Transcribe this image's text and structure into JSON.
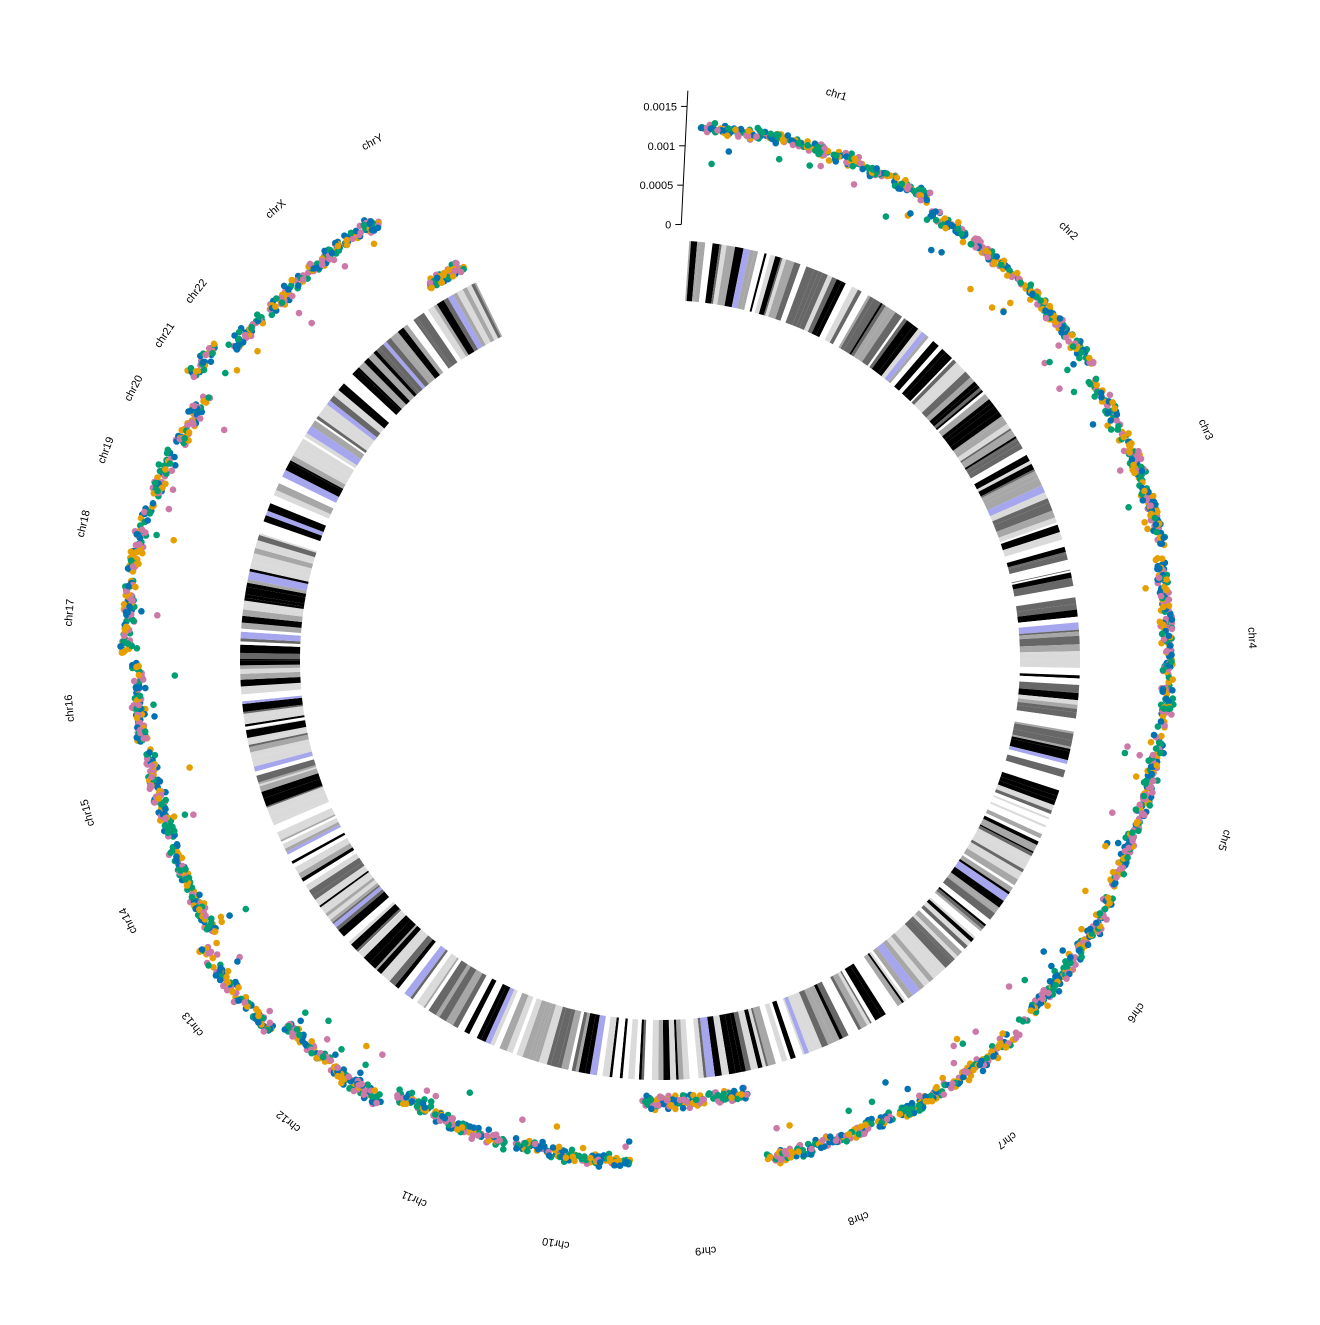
{
  "chart_data": {
    "type": "scatter",
    "layout": "circular genome plot (circos) with cytoband ideogram ring",
    "chromosomes": [
      "chr1",
      "chr2",
      "chr3",
      "chr4",
      "chr5",
      "chr6",
      "chr7",
      "chr8",
      "chr9",
      "chr10",
      "chr11",
      "chr12",
      "chr13",
      "chr14",
      "chr15",
      "chr16",
      "chr17",
      "chr18",
      "chr19",
      "chr20",
      "chr21",
      "chr22",
      "chrX",
      "chrY"
    ],
    "chromosome_lengths_mb": [
      249,
      242,
      198,
      190,
      181,
      171,
      159,
      145,
      138,
      134,
      135,
      133,
      114,
      107,
      102,
      90,
      83,
      80,
      59,
      64,
      47,
      51,
      156,
      57
    ],
    "y_axis": {
      "ticks": [
        0,
        0.0005,
        0.001,
        0.0015
      ],
      "tick_labels": [
        "0",
        "0.0005",
        "0.001",
        "0.0015"
      ],
      "ylim": [
        0,
        0.0017
      ]
    },
    "point_level_by_chromosome": [
      0.00125,
      0.0011,
      0.001,
      0.00092,
      0.00088,
      0.00095,
      0.001,
      0.00095,
      8e-05,
      0.00085,
      0.0009,
      0.0011,
      0.0013,
      0.0011,
      0.00105,
      0.0011,
      0.00125,
      0.00125,
      0.0012,
      0.00115,
      0.0014,
      0.00115,
      0.0011,
      5e-05
    ],
    "series_colors": [
      "#E69F00",
      "#0072B2",
      "#009E73",
      "#CC79A7"
    ],
    "ideogram": {
      "stain_colors": {
        "gneg": "#ffffff",
        "gpos25": "#dadada",
        "gpos50": "#a7a7a7",
        "gpos75": "#676767",
        "gpos100": "#000000",
        "acen": "#a6a6ee",
        "gvar": "#d9d9d9"
      }
    },
    "grid": false,
    "legend": "none"
  }
}
